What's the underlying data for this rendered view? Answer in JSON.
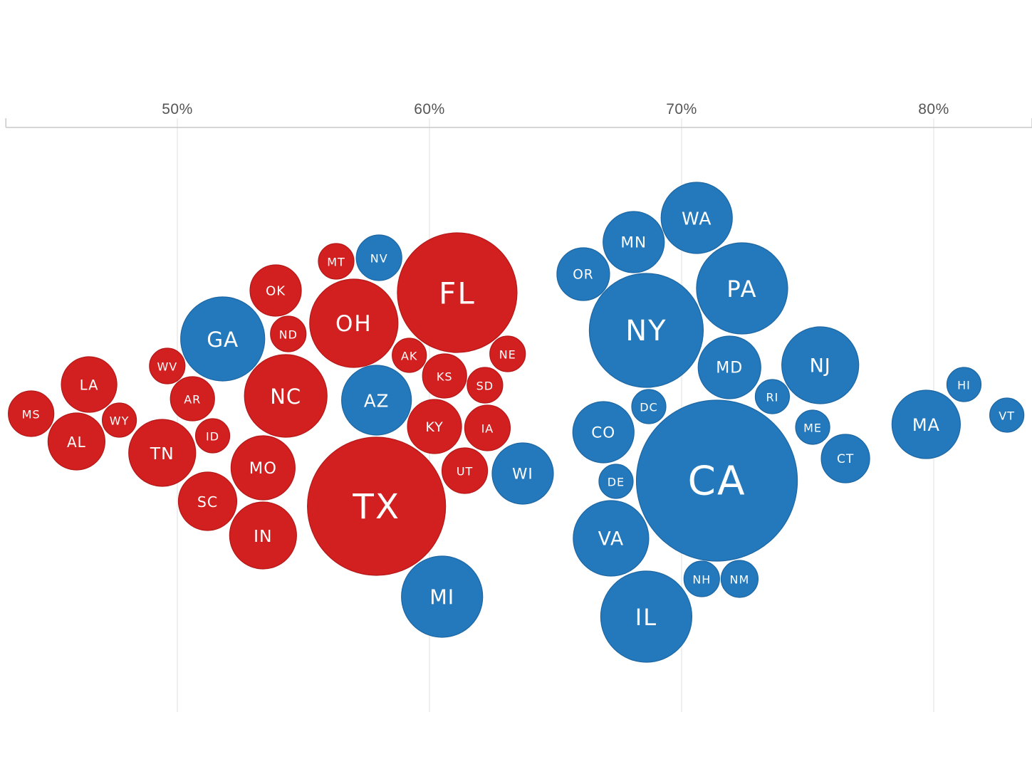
{
  "chart_data": {
    "type": "scatter",
    "subtype": "beeswarm-bubble",
    "title": "",
    "xlabel": "",
    "ylabel": "",
    "xlim": [
      43.2,
      83.9
    ],
    "x_ticks": [
      50,
      60,
      70,
      80
    ],
    "x_tick_labels": [
      "50%",
      "60%",
      "70%",
      "80%"
    ],
    "grid": "vertical",
    "legend": "none",
    "colors": {
      "R": "#d21f1f",
      "D": "#2379bb"
    },
    "points": [
      {
        "label": "MS",
        "x": 44.2,
        "party": "R"
      },
      {
        "label": "AL",
        "x": 46.0,
        "party": "R"
      },
      {
        "label": "LA",
        "x": 46.5,
        "party": "R"
      },
      {
        "label": "WY",
        "x": 47.7,
        "party": "R"
      },
      {
        "label": "WV",
        "x": 49.6,
        "party": "R"
      },
      {
        "label": "TN",
        "x": 49.4,
        "party": "R"
      },
      {
        "label": "AR",
        "x": 50.6,
        "party": "R"
      },
      {
        "label": "ID",
        "x": 51.4,
        "party": "R"
      },
      {
        "label": "SC",
        "x": 51.2,
        "party": "R"
      },
      {
        "label": "GA",
        "x": 51.8,
        "party": "D"
      },
      {
        "label": "OK",
        "x": 53.9,
        "party": "R"
      },
      {
        "label": "ND",
        "x": 54.4,
        "party": "R"
      },
      {
        "label": "NC",
        "x": 54.3,
        "party": "R"
      },
      {
        "label": "MO",
        "x": 53.4,
        "party": "R"
      },
      {
        "label": "IN",
        "x": 53.4,
        "party": "R"
      },
      {
        "label": "MT",
        "x": 56.3,
        "party": "R"
      },
      {
        "label": "NV",
        "x": 58.0,
        "party": "D"
      },
      {
        "label": "OH",
        "x": 57.0,
        "party": "R"
      },
      {
        "label": "FL",
        "x": 61.1,
        "party": "R"
      },
      {
        "label": "AK",
        "x": 59.2,
        "party": "R"
      },
      {
        "label": "AZ",
        "x": 57.9,
        "party": "D"
      },
      {
        "label": "KS",
        "x": 60.6,
        "party": "R"
      },
      {
        "label": "NE",
        "x": 63.1,
        "party": "R"
      },
      {
        "label": "SD",
        "x": 62.2,
        "party": "R"
      },
      {
        "label": "KY",
        "x": 60.2,
        "party": "R"
      },
      {
        "label": "IA",
        "x": 62.3,
        "party": "R"
      },
      {
        "label": "UT",
        "x": 61.4,
        "party": "R"
      },
      {
        "label": "WI",
        "x": 63.7,
        "party": "D"
      },
      {
        "label": "TX",
        "x": 57.9,
        "party": "R"
      },
      {
        "label": "MI",
        "x": 60.5,
        "party": "D"
      },
      {
        "label": "OR",
        "x": 66.1,
        "party": "D"
      },
      {
        "label": "MN",
        "x": 68.1,
        "party": "D"
      },
      {
        "label": "WA",
        "x": 70.6,
        "party": "D"
      },
      {
        "label": "PA",
        "x": 72.4,
        "party": "D"
      },
      {
        "label": "NY",
        "x": 68.6,
        "party": "D"
      },
      {
        "label": "MD",
        "x": 71.9,
        "party": "D"
      },
      {
        "label": "NJ",
        "x": 75.5,
        "party": "D"
      },
      {
        "label": "RI",
        "x": 73.6,
        "party": "D"
      },
      {
        "label": "DC",
        "x": 68.7,
        "party": "D"
      },
      {
        "label": "CO",
        "x": 66.9,
        "party": "D"
      },
      {
        "label": "DE",
        "x": 67.4,
        "party": "D"
      },
      {
        "label": "CA",
        "x": 71.4,
        "party": "D"
      },
      {
        "label": "ME",
        "x": 75.2,
        "party": "D"
      },
      {
        "label": "CT",
        "x": 76.5,
        "party": "D"
      },
      {
        "label": "VA",
        "x": 67.2,
        "party": "D"
      },
      {
        "label": "NH",
        "x": 70.8,
        "party": "D"
      },
      {
        "label": "NM",
        "x": 72.3,
        "party": "D"
      },
      {
        "label": "IL",
        "x": 68.6,
        "party": "D"
      },
      {
        "label": "MA",
        "x": 79.7,
        "party": "D"
      },
      {
        "label": "HI",
        "x": 81.2,
        "party": "D"
      },
      {
        "label": "VT",
        "x": 82.9,
        "party": "D"
      }
    ]
  }
}
